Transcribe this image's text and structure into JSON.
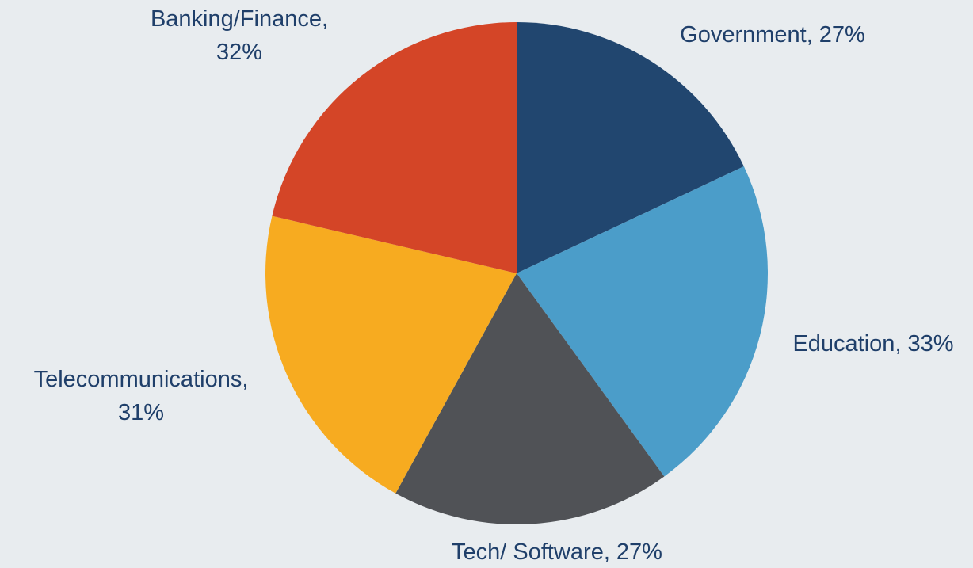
{
  "chart_data": {
    "type": "pie",
    "categories": [
      "Government,",
      "Education,",
      "Tech/ Software,",
      "Telecommunications,",
      "Banking/Finance,"
    ],
    "values": [
      27,
      33,
      27,
      31,
      32
    ],
    "value_labels": [
      "27%",
      "33%",
      "27%",
      "31%",
      "32%"
    ],
    "colors": [
      "#21466f",
      "#4b9dc9",
      "#505256",
      "#f7ab20",
      "#d44527"
    ]
  }
}
